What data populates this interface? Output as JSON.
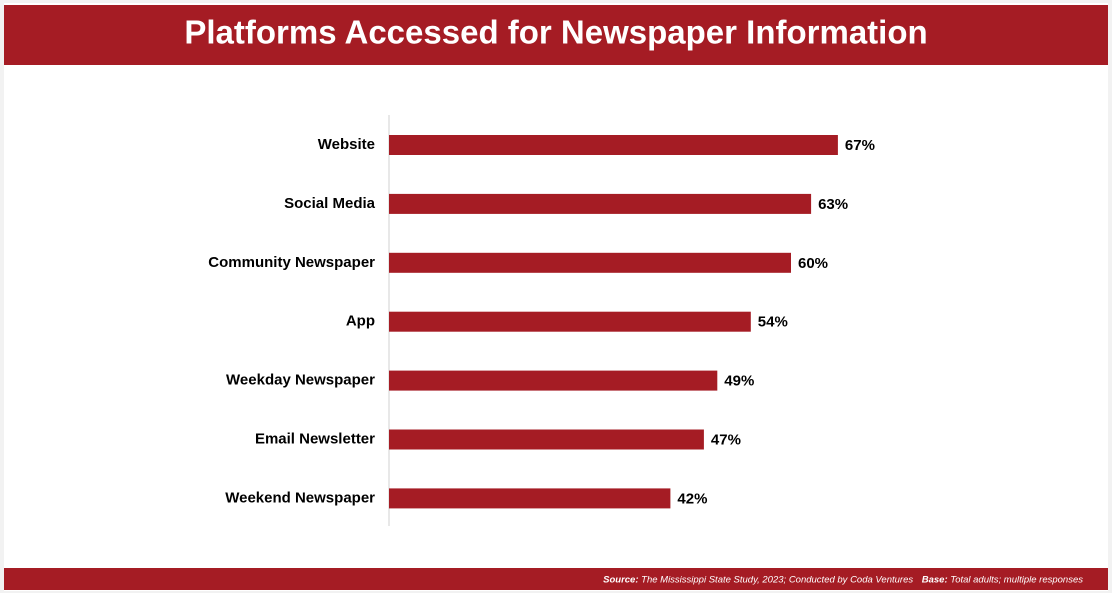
{
  "chart_data": {
    "type": "bar",
    "orientation": "horizontal",
    "title": "Platforms Accessed for Newspaper Information",
    "categories": [
      "Website",
      "Social Media",
      "Community Newspaper",
      "App",
      "Weekday Newspaper",
      "Email Newsletter",
      "Weekend Newspaper"
    ],
    "values": [
      67,
      63,
      60,
      54,
      49,
      47,
      42
    ],
    "value_labels": [
      "67%",
      "63%",
      "60%",
      "54%",
      "49%",
      "47%",
      "42%"
    ],
    "color": "#a51c24"
  },
  "footer": {
    "source_label": "Source:",
    "source_text": "The Mississippi State Study, 2023; Conducted by Coda Ventures",
    "base_label": "Base:",
    "base_text": "Total adults; multiple responses"
  }
}
